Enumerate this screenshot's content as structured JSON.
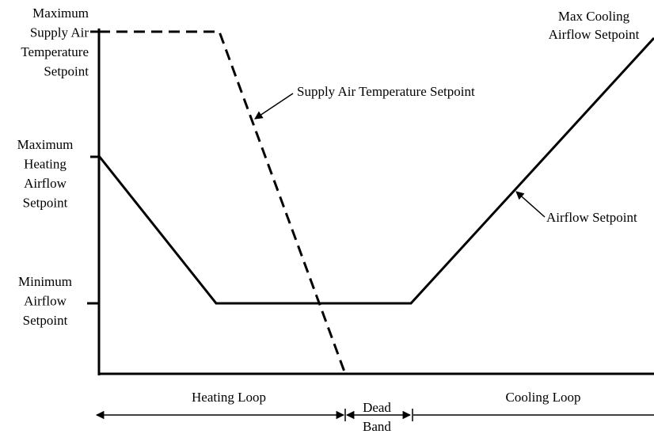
{
  "axis_labels": [
    {
      "lines": [
        "Maximum",
        "Supply Air",
        "Temperature",
        "Setpoint"
      ]
    },
    {
      "lines": [
        "Maximum",
        "Heating",
        "Airflow",
        "Setpoint"
      ]
    },
    {
      "lines": [
        "Minimum",
        "Airflow",
        "Setpoint"
      ]
    }
  ],
  "annotations": {
    "supply_air": "Supply Air Temperature Setpoint",
    "airflow": "Airflow Setpoint",
    "max_cooling": [
      "Max Cooling",
      "Airflow Setpoint"
    ]
  },
  "loops": {
    "heating": "Heating Loop",
    "dead_band": [
      "Dead",
      "Band"
    ],
    "cooling": "Cooling Loop"
  }
}
